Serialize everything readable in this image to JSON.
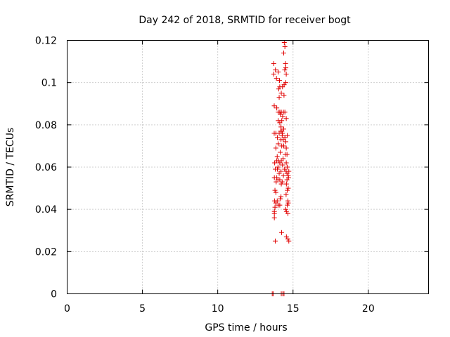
{
  "chart_data": {
    "type": "scatter",
    "title": "Day 242 of 2018, SRMTID for receiver bogt",
    "xlabel": "GPS time / hours",
    "ylabel": "SRMTID / TECUs",
    "xlim": [
      0,
      24
    ],
    "ylim": [
      0,
      0.12
    ],
    "xticks": [
      0,
      5,
      10,
      15,
      20
    ],
    "yticks": [
      0,
      0.02,
      0.04,
      0.06,
      0.08,
      0.1,
      0.12
    ],
    "xtick_labels": [
      "0",
      "5",
      "10",
      "15",
      "20"
    ],
    "ytick_labels": [
      "0",
      "0.02",
      "0.04",
      "0.06",
      "0.08",
      "0.1",
      "0.12"
    ],
    "grid": true,
    "legend": "none",
    "marker": "plus",
    "color": "#e00000",
    "points": [
      [
        14.42,
        0.119
      ],
      [
        14.46,
        0.117
      ],
      [
        14.38,
        0.114
      ],
      [
        14.5,
        0.109
      ],
      [
        13.72,
        0.109
      ],
      [
        14.52,
        0.107
      ],
      [
        14.45,
        0.106
      ],
      [
        13.83,
        0.106
      ],
      [
        14.02,
        0.105
      ],
      [
        13.72,
        0.104
      ],
      [
        14.55,
        0.104
      ],
      [
        13.9,
        0.102
      ],
      [
        14.1,
        0.101
      ],
      [
        14.52,
        0.1
      ],
      [
        14.41,
        0.099
      ],
      [
        14.12,
        0.098
      ],
      [
        14.3,
        0.098
      ],
      [
        14.05,
        0.097
      ],
      [
        14.22,
        0.095
      ],
      [
        14.4,
        0.094
      ],
      [
        14.08,
        0.093
      ],
      [
        13.75,
        0.089
      ],
      [
        13.92,
        0.088
      ],
      [
        14.02,
        0.086
      ],
      [
        14.12,
        0.086
      ],
      [
        14.22,
        0.086
      ],
      [
        14.36,
        0.086
      ],
      [
        14.46,
        0.086
      ],
      [
        14.16,
        0.085
      ],
      [
        14.31,
        0.084
      ],
      [
        14.55,
        0.083
      ],
      [
        14.02,
        0.082
      ],
      [
        14.25,
        0.082
      ],
      [
        14.12,
        0.081
      ],
      [
        14.2,
        0.079
      ],
      [
        14.38,
        0.078
      ],
      [
        14.26,
        0.077
      ],
      [
        14.18,
        0.077
      ],
      [
        13.75,
        0.076
      ],
      [
        13.86,
        0.076
      ],
      [
        14.08,
        0.076
      ],
      [
        14.3,
        0.076
      ],
      [
        14.62,
        0.075
      ],
      [
        14.28,
        0.075
      ],
      [
        14.46,
        0.074
      ],
      [
        13.96,
        0.074
      ],
      [
        14.35,
        0.073
      ],
      [
        14.2,
        0.073
      ],
      [
        14.52,
        0.072
      ],
      [
        14.02,
        0.071
      ],
      [
        14.25,
        0.07
      ],
      [
        14.38,
        0.07
      ],
      [
        13.86,
        0.069
      ],
      [
        14.55,
        0.069
      ],
      [
        14.15,
        0.067
      ],
      [
        14.6,
        0.066
      ],
      [
        14.48,
        0.066
      ],
      [
        13.95,
        0.065
      ],
      [
        14.34,
        0.064
      ],
      [
        14.22,
        0.063
      ],
      [
        13.92,
        0.063
      ],
      [
        14.04,
        0.063
      ],
      [
        14.55,
        0.062
      ],
      [
        13.78,
        0.062
      ],
      [
        14.12,
        0.062
      ],
      [
        14.3,
        0.061
      ],
      [
        14.0,
        0.06
      ],
      [
        14.62,
        0.06
      ],
      [
        13.82,
        0.059
      ],
      [
        14.44,
        0.059
      ],
      [
        13.96,
        0.059
      ],
      [
        14.2,
        0.058
      ],
      [
        14.54,
        0.058
      ],
      [
        14.72,
        0.058
      ],
      [
        14.08,
        0.057
      ],
      [
        14.6,
        0.057
      ],
      [
        14.36,
        0.056
      ],
      [
        14.68,
        0.056
      ],
      [
        14.7,
        0.055
      ],
      [
        13.76,
        0.055
      ],
      [
        13.92,
        0.055
      ],
      [
        14.12,
        0.054
      ],
      [
        14.6,
        0.054
      ],
      [
        14.0,
        0.054
      ],
      [
        14.28,
        0.053
      ],
      [
        13.88,
        0.053
      ],
      [
        14.22,
        0.052
      ],
      [
        14.56,
        0.052
      ],
      [
        14.68,
        0.05
      ],
      [
        13.8,
        0.049
      ],
      [
        14.62,
        0.049
      ],
      [
        13.86,
        0.048
      ],
      [
        14.54,
        0.047
      ],
      [
        14.2,
        0.046
      ],
      [
        14.16,
        0.045
      ],
      [
        13.95,
        0.044
      ],
      [
        14.66,
        0.044
      ],
      [
        13.78,
        0.044
      ],
      [
        14.68,
        0.043
      ],
      [
        13.86,
        0.043
      ],
      [
        14.02,
        0.042
      ],
      [
        14.62,
        0.042
      ],
      [
        14.12,
        0.042
      ],
      [
        13.8,
        0.041
      ],
      [
        14.52,
        0.04
      ],
      [
        13.76,
        0.039
      ],
      [
        14.56,
        0.039
      ],
      [
        14.66,
        0.038
      ],
      [
        13.76,
        0.038
      ],
      [
        13.76,
        0.036
      ],
      [
        14.24,
        0.029
      ],
      [
        14.56,
        0.027
      ],
      [
        14.66,
        0.026
      ],
      [
        13.82,
        0.025
      ],
      [
        14.72,
        0.025
      ],
      [
        13.62,
        0.0
      ],
      [
        13.68,
        0.0
      ],
      [
        14.22,
        0.0
      ],
      [
        14.32,
        0.0
      ],
      [
        14.4,
        0.0
      ]
    ]
  }
}
